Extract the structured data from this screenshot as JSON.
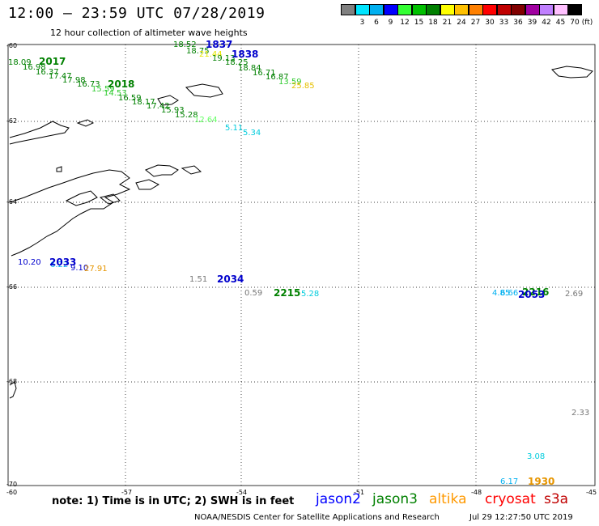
{
  "header": {
    "title": "12:00 — 23:59 UTC 07/28/2019",
    "subtitle": "12 hour collection of altimeter wave heights"
  },
  "legend": {
    "unit": "(ft)",
    "colors": [
      "#808080",
      "#00e5ff",
      "#00b0f0",
      "#0000ff",
      "#33ff33",
      "#00c000",
      "#008000",
      "#ffff00",
      "#ffc000",
      "#ff8000",
      "#ff0000",
      "#c00000",
      "#800000",
      "#a000a0",
      "#c080ff",
      "#ffc0ff",
      "#000000"
    ],
    "labels": [
      "",
      "3",
      "6",
      "9",
      "12",
      "15",
      "18",
      "21",
      "24",
      "27",
      "30",
      "33",
      "36",
      "39",
      "42",
      "45",
      "70"
    ]
  },
  "axes": {
    "lat_labels": [
      "-60",
      "-62",
      "-64",
      "-66",
      "-68",
      "-70"
    ],
    "lon_labels": [
      "-60",
      "-57",
      "-54",
      "-51",
      "-48",
      "-45"
    ]
  },
  "readings": [
    {
      "text": "18.52",
      "c": "#008000"
    },
    {
      "text": "18.75",
      "c": "#008000"
    },
    {
      "text": "21.44",
      "c": "#e6e600"
    },
    {
      "text": "19.13",
      "c": "#008000"
    },
    {
      "text": "18.25",
      "c": "#008000"
    },
    {
      "text": "18.84",
      "c": "#008000"
    },
    {
      "text": "16.71",
      "c": "#008000"
    },
    {
      "text": "16.87",
      "c": "#008000"
    },
    {
      "text": "13.59",
      "c": "#33cc33"
    },
    {
      "text": "25.85",
      "c": "#e6c000"
    },
    {
      "text": "18.09",
      "c": "#008000"
    },
    {
      "text": "16.98",
      "c": "#008000"
    },
    {
      "text": "16.37",
      "c": "#008000"
    },
    {
      "text": "17.47",
      "c": "#008000"
    },
    {
      "text": "17.98",
      "c": "#008000"
    },
    {
      "text": "16.73",
      "c": "#008000"
    },
    {
      "text": "15.59",
      "c": "#33cc33"
    },
    {
      "text": "14.53",
      "c": "#33cc33"
    },
    {
      "text": "16.59",
      "c": "#008000"
    },
    {
      "text": "18.17",
      "c": "#008000"
    },
    {
      "text": "17.42",
      "c": "#008000"
    },
    {
      "text": "15.93",
      "c": "#008000"
    },
    {
      "text": "15.28",
      "c": "#008000"
    },
    {
      "text": "12.64",
      "c": "#66ff66"
    },
    {
      "text": "5.11",
      "c": "#00ccdd"
    },
    {
      "text": "5.34",
      "c": "#00ccdd"
    },
    {
      "text": "10.20",
      "c": "#0000cc"
    },
    {
      "text": "6.22",
      "c": "#00b0f0"
    },
    {
      "text": "9.10",
      "c": "#0000cc"
    },
    {
      "text": "27.91",
      "c": "#e69500"
    },
    {
      "text": "1.51",
      "c": "#777777"
    },
    {
      "text": "0.59",
      "c": "#777777"
    },
    {
      "text": "5.28",
      "c": "#00ccdd"
    },
    {
      "text": "4.85",
      "c": "#00b0f0"
    },
    {
      "text": "6.66",
      "c": "#00b0f0"
    },
    {
      "text": "2.69",
      "c": "#777777"
    },
    {
      "text": "2.33",
      "c": "#777777"
    },
    {
      "text": "3.08",
      "c": "#00ccdd"
    },
    {
      "text": "6.17",
      "c": "#00b0f0"
    }
  ],
  "times": [
    {
      "text": "1837",
      "c": "#0000cc"
    },
    {
      "text": "1838",
      "c": "#0000cc"
    },
    {
      "text": "2017",
      "c": "#008000"
    },
    {
      "text": "2018",
      "c": "#008000"
    },
    {
      "text": "2033",
      "c": "#0000cc"
    },
    {
      "text": "2034",
      "c": "#0000cc"
    },
    {
      "text": "2215",
      "c": "#008000"
    },
    {
      "text": "2216",
      "c": "#008000"
    },
    {
      "text": "2053",
      "c": "#0000cc"
    },
    {
      "text": "1930",
      "c": "#e69500"
    }
  ],
  "footer": {
    "note": "note: 1) Time is in UTC; 2) SWH is in feet",
    "satellites": [
      {
        "name": "jason2",
        "color": "#0000ff"
      },
      {
        "name": "jason3",
        "color": "#008000"
      },
      {
        "name": "altika",
        "color": "#ff9900"
      },
      {
        "name": "cryosat",
        "color": "#ff0000"
      },
      {
        "name": "s3a",
        "color": "#c00000"
      }
    ],
    "credit": "NOAA/NESDIS Center for Satellite Applications and Research",
    "timestamp": "Jul 29 12:27:50 UTC 2019"
  }
}
